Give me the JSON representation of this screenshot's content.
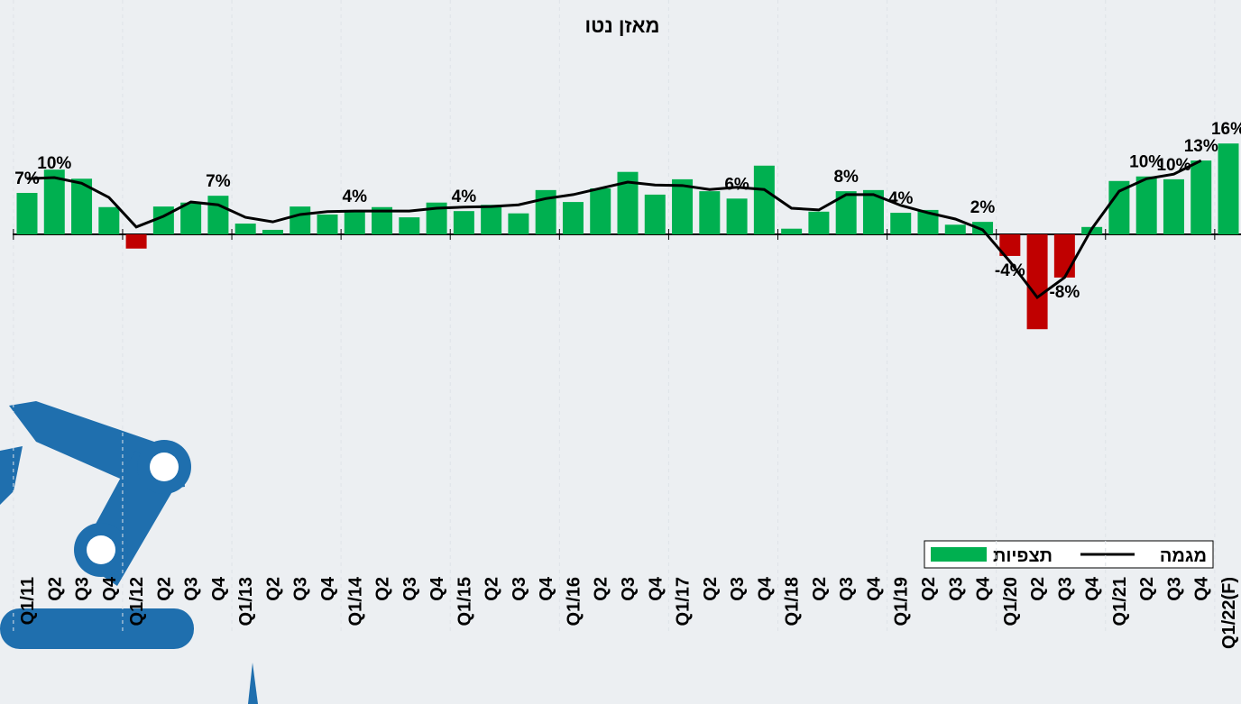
{
  "chart_data": {
    "type": "bar_line",
    "title": "מאזן נטו",
    "categories": [
      "Q1/11",
      "Q2",
      "Q3",
      "Q4",
      "Q1/12",
      "Q2",
      "Q3",
      "Q4",
      "Q1/13",
      "Q2",
      "Q3",
      "Q4",
      "Q1/14",
      "Q2",
      "Q3",
      "Q4",
      "Q1/15",
      "Q2",
      "Q3",
      "Q4",
      "Q1/16",
      "Q2",
      "Q3",
      "Q4",
      "Q1/17",
      "Q2",
      "Q3",
      "Q4",
      "Q1/18",
      "Q2",
      "Q3",
      "Q4",
      "Q1/19",
      "Q2",
      "Q3",
      "Q4",
      "Q1/20",
      "Q2",
      "Q3",
      "Q4",
      "Q1/21",
      "Q2",
      "Q3",
      "Q4",
      "Q1/22(F)"
    ],
    "series": [
      {
        "name": "תצפיות",
        "kind": "bar",
        "color": "#00b050",
        "negative_color": "#c00000",
        "values": [
          7.3,
          11.4,
          9.8,
          4.8,
          -2.5,
          4.9,
          5.6,
          6.8,
          1.9,
          0.8,
          4.9,
          3.5,
          4.1,
          4.8,
          3.0,
          5.6,
          4.1,
          5.2,
          3.7,
          7.8,
          5.7,
          8.1,
          11.0,
          7.0,
          9.7,
          7.6,
          6.3,
          12.1,
          1.0,
          4.0,
          7.6,
          7.8,
          3.8,
          4.3,
          1.7,
          2.2,
          -3.8,
          -16.7,
          -7.6,
          1.3,
          9.4,
          10.2,
          9.7,
          13.0,
          16.0
        ],
        "value_labels": [
          "7%",
          null,
          null,
          null,
          null,
          null,
          null,
          "7%",
          null,
          null,
          null,
          null,
          "4%",
          null,
          null,
          null,
          "4%",
          null,
          null,
          null,
          null,
          null,
          null,
          null,
          null,
          null,
          "6%",
          null,
          null,
          null,
          "8%",
          null,
          "4%",
          null,
          null,
          "2%",
          "-4%",
          null,
          "-8%",
          null,
          null,
          "10%",
          "10%",
          "13%",
          "16%"
        ]
      },
      {
        "name": "מגמה",
        "kind": "line",
        "color": "#000000",
        "values": [
          9.8,
          10.0,
          9.0,
          6.5,
          1.3,
          3.2,
          5.7,
          5.2,
          3.0,
          2.2,
          3.5,
          4.0,
          4.1,
          4.1,
          4.1,
          4.6,
          4.8,
          4.9,
          5.2,
          6.3,
          7.0,
          8.1,
          9.2,
          8.7,
          8.6,
          7.9,
          8.3,
          7.9,
          4.6,
          4.3,
          7.0,
          7.0,
          5.1,
          3.8,
          2.7,
          0.8,
          -4.8,
          -11.1,
          -7.6,
          1.0,
          7.6,
          9.8,
          10.6,
          13.0,
          null
        ],
        "value_labels": [
          null,
          "10%",
          null,
          null,
          null,
          null,
          null,
          null,
          null,
          null,
          null,
          null,
          null,
          null,
          null,
          null,
          null,
          null,
          null,
          null,
          null,
          null,
          null,
          null,
          null,
          null,
          null,
          null,
          null,
          null,
          null,
          null,
          null,
          null,
          null,
          null,
          null,
          null,
          null,
          null,
          null,
          null,
          null,
          null,
          null
        ]
      }
    ],
    "ylim": [
      -20,
      20
    ],
    "legend": "bottom-right"
  }
}
